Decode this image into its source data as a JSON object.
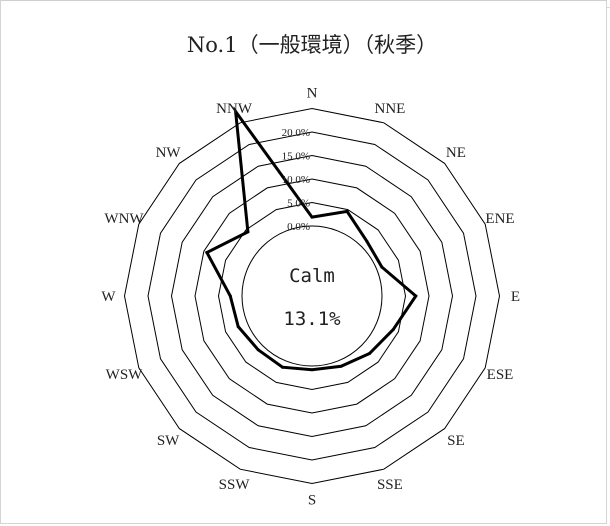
{
  "chart_data": {
    "type": "radar",
    "title": "No.1（一般環境）（秋季）",
    "directions": [
      "N",
      "NNE",
      "NE",
      "ENE",
      "E",
      "ESE",
      "SE",
      "SSE",
      "S",
      "SSW",
      "SW",
      "WSW",
      "W",
      "WNW",
      "NW",
      "NNW"
    ],
    "values": [
      1.9,
      4.6,
      1.6,
      1.2,
      7.2,
      3.8,
      2.4,
      1.3,
      0.8,
      1.5,
      1.3,
      2.1,
      2.5,
      9.3,
      4.4,
      27.6
    ],
    "radial_ticks": [
      0,
      5,
      10,
      15,
      20
    ],
    "radial_tick_labels": [
      "0.0%",
      "5.0%",
      "10.0%",
      "15.0%",
      "20.0%"
    ],
    "calm": {
      "label": "Calm",
      "value": "13.1%"
    }
  }
}
